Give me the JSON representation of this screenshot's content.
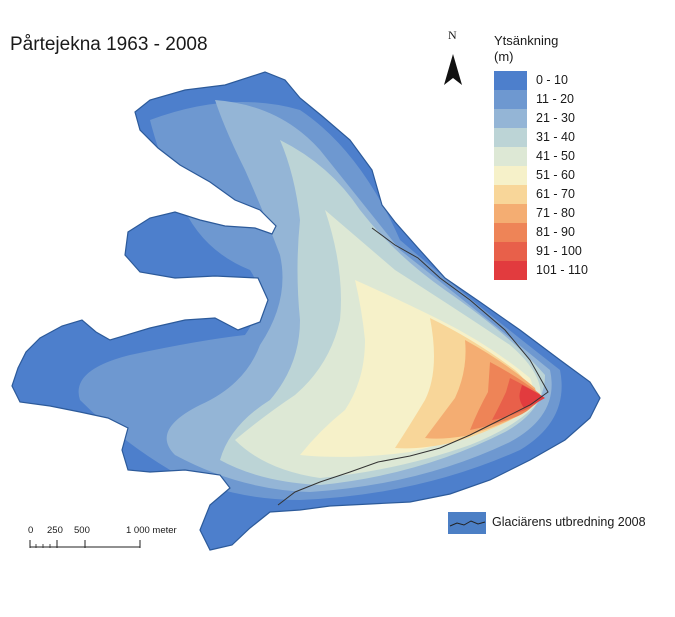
{
  "title": "Pårtejekna 1963 - 2008",
  "north_arrow": {
    "label": "N"
  },
  "legend": {
    "title_line1": "Ytsänkning",
    "title_line2": "(m)",
    "classes": [
      {
        "label": "0 - 10",
        "color": "#4d7fcc"
      },
      {
        "label": "11 - 20",
        "color": "#6e98d0"
      },
      {
        "label": "21 - 30",
        "color": "#94b5d6"
      },
      {
        "label": "31 - 40",
        "color": "#bcd4d6"
      },
      {
        "label": "41 - 50",
        "color": "#dde8d5"
      },
      {
        "label": "51 - 60",
        "color": "#f6f1c9"
      },
      {
        "label": "61 - 70",
        "color": "#f8d699"
      },
      {
        "label": "71 - 80",
        "color": "#f4ad72"
      },
      {
        "label": "81 - 90",
        "color": "#ee8457"
      },
      {
        "label": "91 - 100",
        "color": "#e8604a"
      },
      {
        "label": "101 - 110",
        "color": "#e23b3e"
      }
    ]
  },
  "glacier_outline_legend": {
    "label": "Glaciärens utbredning 2008"
  },
  "scale_bar": {
    "labels": [
      "0",
      "250",
      "500",
      "1 000 meter"
    ]
  }
}
